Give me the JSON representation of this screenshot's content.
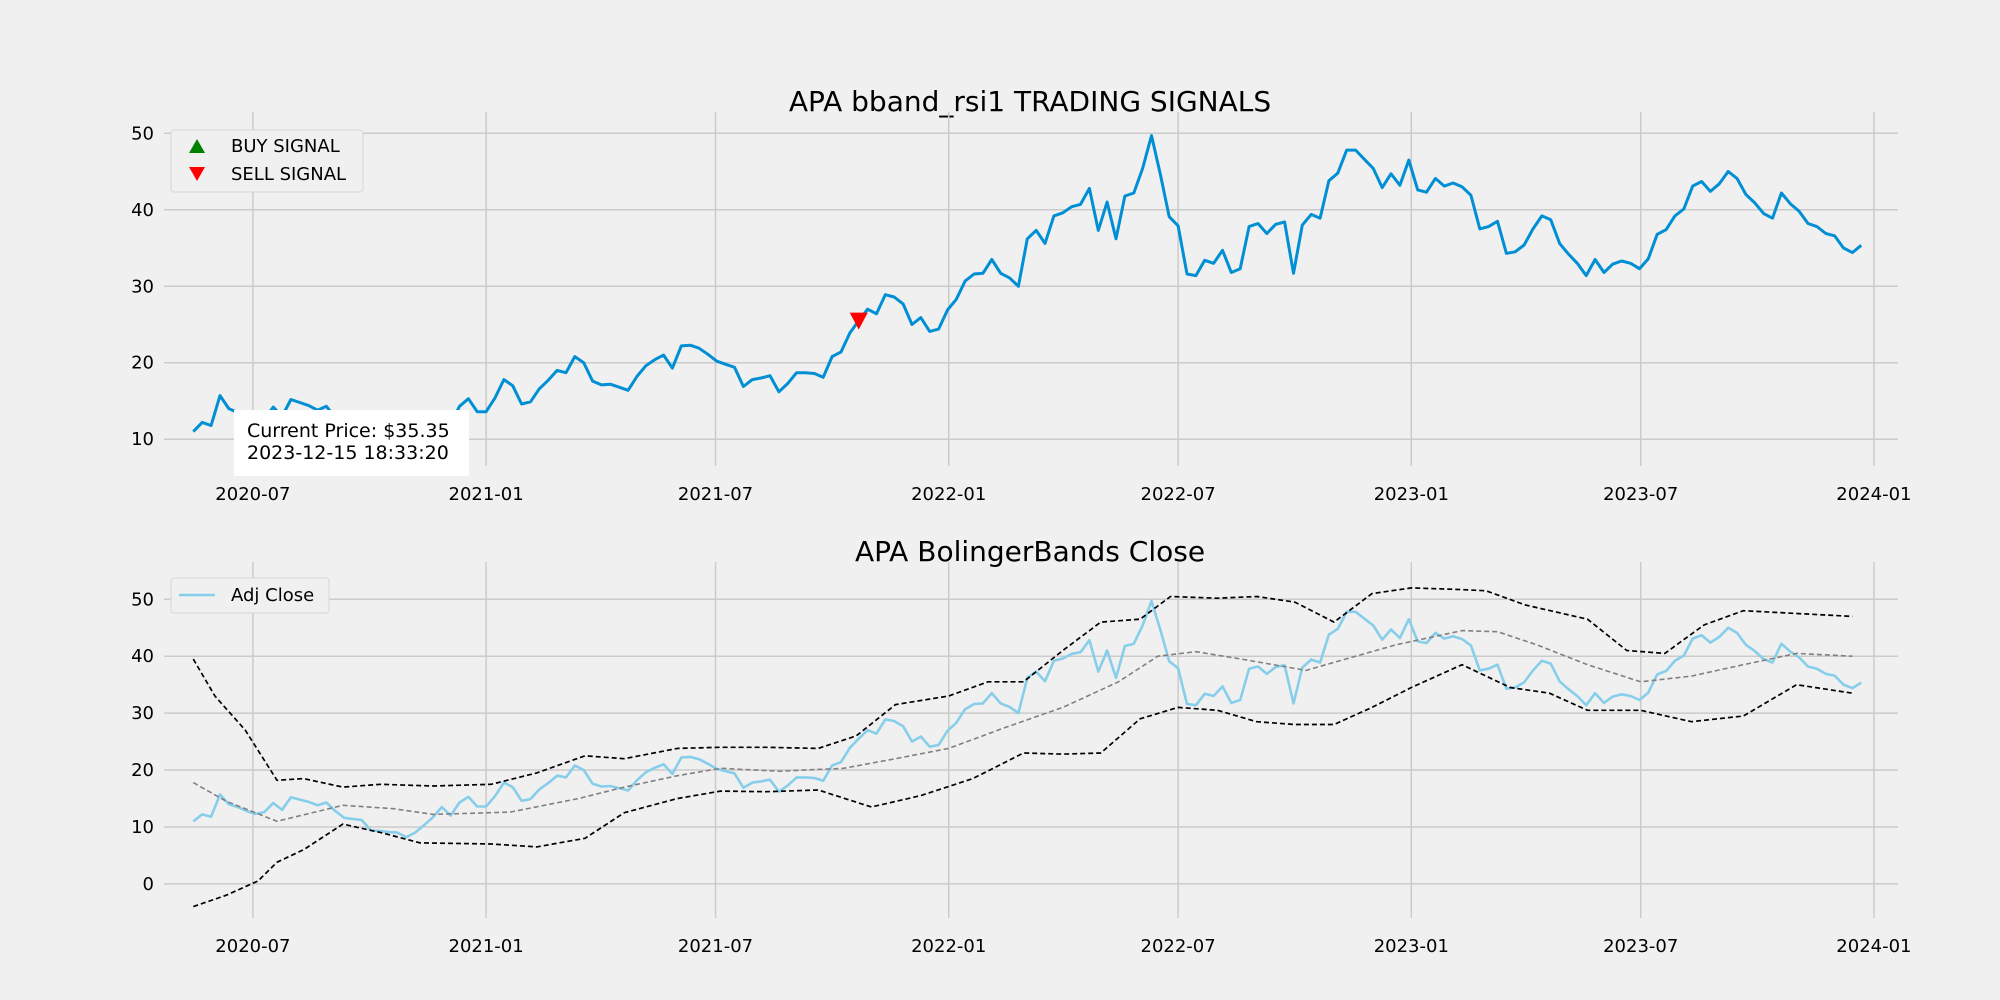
{
  "chart_data": [
    {
      "type": "line",
      "title": "APA bband_rsi1 TRADING SIGNALS",
      "xlabel": "",
      "ylabel": "",
      "x_ticks": [
        "2020-07",
        "2021-01",
        "2021-07",
        "2022-01",
        "2022-07",
        "2023-01",
        "2023-07",
        "2024-01"
      ],
      "y_ticks": [
        "10",
        "20",
        "30",
        "40",
        "50"
      ],
      "xlim": [
        "2020-04-25",
        "2024-01-20"
      ],
      "ylim": [
        6.5,
        52
      ],
      "grid": true,
      "legend_position": "top-left",
      "legend": [
        {
          "label": "BUY SIGNAL",
          "marker": "triangle-up",
          "color": "#008000"
        },
        {
          "label": "SELL SIGNAL",
          "marker": "triangle-down",
          "color": "#ff0000"
        }
      ],
      "series": [
        {
          "color": "#008fd5",
          "values": [
            11.0,
            12.2,
            11.8,
            15.7,
            14.0,
            13.5,
            12.8,
            12.3,
            12.6,
            14.2,
            13.0,
            15.2,
            14.8,
            14.4,
            13.8,
            14.3,
            12.8,
            11.6,
            11.4,
            11.2,
            9.4,
            9.3,
            9.1,
            9.0,
            8.2,
            9.0,
            10.3,
            11.7,
            13.5,
            12.0,
            14.3,
            15.3,
            13.6,
            13.6,
            15.4,
            17.8,
            17.0,
            14.6,
            14.9,
            16.6,
            17.7,
            19.0,
            18.7,
            20.8,
            20.0,
            17.6,
            17.1,
            17.2,
            16.8,
            16.4,
            18.2,
            19.6,
            20.4,
            21.0,
            19.3,
            22.2,
            22.3,
            21.9,
            21.1,
            20.2,
            19.8,
            19.4,
            16.9,
            17.8,
            18.0,
            18.3,
            16.2,
            17.3,
            18.7,
            18.7,
            18.6,
            18.1,
            20.8,
            21.4,
            23.9,
            25.5,
            27.0,
            26.4,
            28.9,
            28.6,
            27.7,
            25.0,
            25.9,
            24.1,
            24.4,
            26.9,
            28.3,
            30.7,
            31.6,
            31.7,
            33.5,
            31.7,
            31.1,
            30.0,
            36.2,
            37.3,
            35.6,
            39.2,
            39.6,
            40.4,
            40.7,
            42.8,
            37.3,
            41.0,
            36.2,
            41.8,
            42.2,
            45.4,
            49.7,
            44.6,
            39.1,
            37.9,
            31.6,
            31.4,
            33.4,
            33.0,
            34.7,
            31.8,
            32.3,
            37.8,
            38.2,
            36.9,
            38.1,
            38.4,
            31.7,
            38.0,
            39.4,
            38.9,
            43.8,
            44.8,
            47.8,
            47.8,
            46.6,
            45.4,
            42.9,
            44.7,
            43.2,
            46.5,
            42.6,
            42.3,
            44.1,
            43.1,
            43.5,
            43.0,
            41.9,
            37.5,
            37.8,
            38.5,
            34.3,
            34.5,
            35.4,
            37.5,
            39.2,
            38.7,
            35.6,
            34.2,
            33.0,
            31.4,
            33.5,
            31.8,
            32.9,
            33.3,
            33.0,
            32.3,
            33.6,
            36.8,
            37.4,
            39.2,
            40.1,
            43.1,
            43.7,
            42.4,
            43.4,
            45.0,
            44.1,
            42.0,
            40.9,
            39.5,
            38.9,
            42.2,
            40.8,
            39.8,
            38.2,
            37.8,
            36.9,
            36.6,
            35.0,
            34.4,
            35.35
          ]
        }
      ],
      "signals": [
        {
          "type": "sell",
          "date": "2021-10-22",
          "value": 25.5
        }
      ],
      "annotation": {
        "line1": "Current Price: $35.35",
        "line2": "2023-12-15 18:33:20"
      }
    },
    {
      "type": "line",
      "title": "APA BolingerBands Close",
      "xlabel": "",
      "ylabel": "",
      "x_ticks": [
        "2020-07",
        "2021-01",
        "2021-07",
        "2022-01",
        "2022-07",
        "2023-01",
        "2023-07",
        "2024-01"
      ],
      "y_ticks": [
        "0",
        "10",
        "20",
        "30",
        "40",
        "50"
      ],
      "xlim": [
        "2020-04-25",
        "2024-01-20"
      ],
      "ylim": [
        -6,
        55.5
      ],
      "grid": true,
      "legend_position": "top-left",
      "series": [
        {
          "name": "Adj Close",
          "color": "#87ceeb",
          "values": "same as chart 1 series"
        },
        {
          "color": "#808080",
          "style": "dashed",
          "role": "middle-band",
          "points": [
            [
              "2020-05-15",
              17.8
            ],
            [
              "2020-06-10",
              14.5
            ],
            [
              "2020-07-20",
              11.0
            ],
            [
              "2020-09-10",
              13.8
            ],
            [
              "2020-10-20",
              13.2
            ],
            [
              "2020-11-20",
              12.2
            ],
            [
              "2021-01-20",
              12.6
            ],
            [
              "2021-03-15",
              15.0
            ],
            [
              "2021-04-20",
              17.0
            ],
            [
              "2021-06-01",
              19.0
            ],
            [
              "2021-07-05",
              20.3
            ],
            [
              "2021-08-20",
              19.8
            ],
            [
              "2021-10-10",
              20.3
            ],
            [
              "2021-11-20",
              22.0
            ],
            [
              "2022-01-01",
              23.8
            ],
            [
              "2022-02-15",
              27.5
            ],
            [
              "2022-04-01",
              31.0
            ],
            [
              "2022-05-15",
              35.5
            ],
            [
              "2022-06-15",
              40.0
            ],
            [
              "2022-07-15",
              40.8
            ],
            [
              "2022-08-20",
              39.5
            ],
            [
              "2022-10-10",
              37.5
            ],
            [
              "2022-11-10",
              39.5
            ],
            [
              "2022-12-20",
              42.0
            ],
            [
              "2023-02-10",
              44.5
            ],
            [
              "2023-03-10",
              44.3
            ],
            [
              "2023-04-10",
              42.0
            ],
            [
              "2023-05-20",
              38.5
            ],
            [
              "2023-07-01",
              35.5
            ],
            [
              "2023-08-10",
              36.5
            ],
            [
              "2023-09-20",
              38.5
            ],
            [
              "2023-11-01",
              40.5
            ],
            [
              "2023-12-15",
              40.0
            ]
          ]
        },
        {
          "color": "#000000",
          "style": "dashed",
          "role": "upper-band",
          "points": [
            [
              "2020-05-15",
              39.5
            ],
            [
              "2020-06-01",
              33.0
            ],
            [
              "2020-06-25",
              27.0
            ],
            [
              "2020-07-20",
              18.2
            ],
            [
              "2020-08-10",
              18.5
            ],
            [
              "2020-09-10",
              17.0
            ],
            [
              "2020-10-10",
              17.5
            ],
            [
              "2020-11-20",
              17.2
            ],
            [
              "2021-01-05",
              17.5
            ],
            [
              "2021-02-10",
              19.5
            ],
            [
              "2021-03-20",
              22.5
            ],
            [
              "2021-04-20",
              22.0
            ],
            [
              "2021-06-01",
              23.8
            ],
            [
              "2021-07-05",
              24.0
            ],
            [
              "2021-08-10",
              24.0
            ],
            [
              "2021-09-20",
              23.8
            ],
            [
              "2021-10-20",
              26.0
            ],
            [
              "2021-11-20",
              31.5
            ],
            [
              "2022-01-01",
              33.0
            ],
            [
              "2022-02-01",
              35.5
            ],
            [
              "2022-03-01",
              35.5
            ],
            [
              "2022-04-01",
              41.0
            ],
            [
              "2022-05-01",
              46.0
            ],
            [
              "2022-06-01",
              46.5
            ],
            [
              "2022-06-25",
              50.5
            ],
            [
              "2022-08-01",
              50.2
            ],
            [
              "2022-09-01",
              50.5
            ],
            [
              "2022-10-01",
              49.5
            ],
            [
              "2022-11-01",
              46.0
            ],
            [
              "2022-12-01",
              51.0
            ],
            [
              "2023-01-01",
              52.0
            ],
            [
              "2023-02-10",
              51.7
            ],
            [
              "2023-03-01",
              51.5
            ],
            [
              "2023-04-01",
              49.0
            ],
            [
              "2023-05-20",
              46.5
            ],
            [
              "2023-06-20",
              41.0
            ],
            [
              "2023-07-20",
              40.5
            ],
            [
              "2023-08-20",
              45.5
            ],
            [
              "2023-09-20",
              48.0
            ],
            [
              "2023-11-01",
              47.5
            ],
            [
              "2023-12-15",
              47.0
            ]
          ]
        },
        {
          "color": "#000000",
          "style": "dashed",
          "role": "lower-band",
          "points": [
            [
              "2020-05-15",
              -4.0
            ],
            [
              "2020-06-10",
              -2.0
            ],
            [
              "2020-07-05",
              0.5
            ],
            [
              "2020-07-20",
              3.8
            ],
            [
              "2020-08-10",
              6.0
            ],
            [
              "2020-09-10",
              10.5
            ],
            [
              "2020-10-10",
              9.0
            ],
            [
              "2020-11-10",
              7.2
            ],
            [
              "2021-01-05",
              7.0
            ],
            [
              "2021-02-10",
              6.5
            ],
            [
              "2021-03-20",
              8.0
            ],
            [
              "2021-04-20",
              12.5
            ],
            [
              "2021-06-01",
              15.0
            ],
            [
              "2021-07-05",
              16.3
            ],
            [
              "2021-08-10",
              16.2
            ],
            [
              "2021-09-20",
              16.5
            ],
            [
              "2021-11-01",
              13.5
            ],
            [
              "2021-12-10",
              15.5
            ],
            [
              "2022-01-20",
              18.5
            ],
            [
              "2022-03-01",
              23.0
            ],
            [
              "2022-04-01",
              22.8
            ],
            [
              "2022-05-01",
              23.0
            ],
            [
              "2022-06-01",
              29.0
            ],
            [
              "2022-07-01",
              31.0
            ],
            [
              "2022-08-01",
              30.5
            ],
            [
              "2022-09-01",
              28.5
            ],
            [
              "2022-10-01",
              28.0
            ],
            [
              "2022-11-01",
              28.0
            ],
            [
              "2022-12-01",
              31.0
            ],
            [
              "2023-01-01",
              34.5
            ],
            [
              "2023-02-10",
              38.5
            ],
            [
              "2023-03-20",
              34.5
            ],
            [
              "2023-04-20",
              33.5
            ],
            [
              "2023-05-20",
              30.5
            ],
            [
              "2023-07-01",
              30.5
            ],
            [
              "2023-08-10",
              28.5
            ],
            [
              "2023-09-20",
              29.5
            ],
            [
              "2023-11-01",
              35.0
            ],
            [
              "2023-12-15",
              33.5
            ]
          ]
        }
      ]
    }
  ],
  "series_start_date": "2020-05-15",
  "series_step_days": 7,
  "colors": {
    "background": "#f0f0f0",
    "grid": "#cbcbcb",
    "price": "#008fd5",
    "adj_close": "#87ceeb"
  }
}
